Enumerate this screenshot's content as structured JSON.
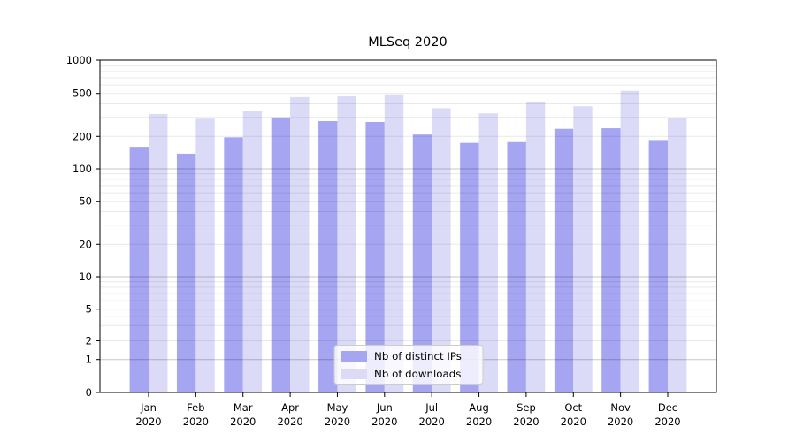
{
  "chart_data": {
    "type": "bar",
    "title": "MLSeq 2020",
    "categories": [
      "Jan 2020",
      "Feb 2020",
      "Mar 2020",
      "Apr 2020",
      "May 2020",
      "Jun 2020",
      "Jul 2020",
      "Aug 2020",
      "Sep 2020",
      "Oct 2020",
      "Nov 2020",
      "Dec 2020"
    ],
    "series": [
      {
        "name": "Nb of distinct IPs",
        "color": "#a5a5f2",
        "values": [
          160,
          138,
          196,
          300,
          277,
          272,
          208,
          174,
          177,
          235,
          238,
          185
        ]
      },
      {
        "name": "Nb of downloads",
        "color": "#dbdbf8",
        "values": [
          322,
          292,
          341,
          462,
          470,
          490,
          365,
          327,
          420,
          380,
          530,
          297
        ]
      }
    ],
    "xlabel": "",
    "ylabel": "",
    "y_scale": "symlog",
    "ylim": [
      0,
      1000
    ],
    "y_ticks": [
      0,
      1,
      2,
      5,
      10,
      20,
      50,
      100,
      200,
      500,
      1000
    ],
    "grid": "both",
    "legend": {
      "position": "lower center",
      "entries": [
        "Nb of distinct IPs",
        "Nb of downloads"
      ],
      "background": "#ffffff",
      "border_color": "#cccccc"
    },
    "colors": {
      "axis": "#000000",
      "grid_minor": "#ebebeb",
      "grid_major": "#c8c8c8",
      "background": "#ffffff"
    }
  }
}
